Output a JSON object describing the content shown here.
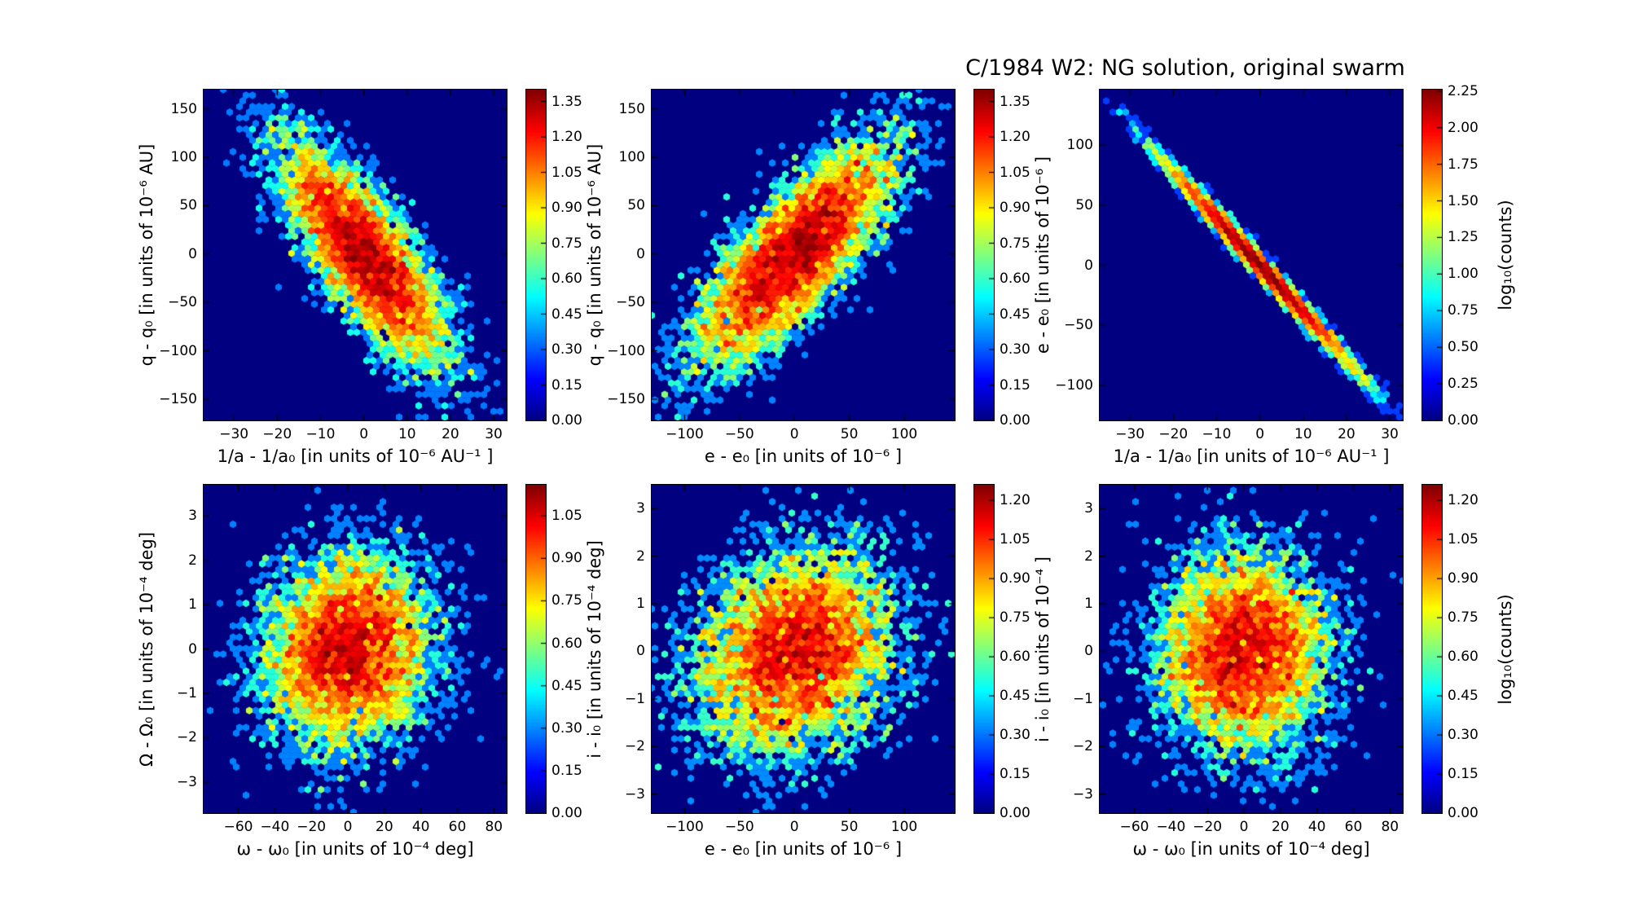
{
  "title": "C/1984 W2:  NG solution, original swarm",
  "colormap": "jet",
  "plot_background_color": "#000080",
  "hex_top_color": "#800000",
  "chart_data": [
    {
      "id": "q-vs-inverse-a",
      "type": "hexbin",
      "xlabel": "1/a - 1/a₀  [in units of 10⁻⁶  AU⁻¹ ]",
      "ylabel": "q - q₀  [in units of 10⁻⁶  AU]",
      "xlim": [
        -37,
        33
      ],
      "ylim": [
        -172,
        170
      ],
      "xticks": {
        "values": [
          -30,
          -20,
          -10,
          0,
          10,
          20,
          30
        ],
        "labels": [
          "−30",
          "−20",
          "−10",
          "0",
          "10",
          "20",
          "30"
        ]
      },
      "yticks": {
        "values": [
          -150,
          -100,
          -50,
          0,
          50,
          100,
          150
        ],
        "labels": [
          "−150",
          "−100",
          "−50",
          "0",
          "50",
          "100",
          "150"
        ]
      },
      "colorbar": {
        "tick_values": [
          0.0,
          0.15,
          0.3,
          0.45,
          0.6,
          0.75,
          0.9,
          1.05,
          1.2,
          1.35
        ],
        "tick_labels": [
          "0.00",
          "0.15",
          "0.30",
          "0.45",
          "0.60",
          "0.75",
          "0.90",
          "1.05",
          "1.20",
          "1.35"
        ],
        "scale_max": 1.4,
        "label": ""
      },
      "distribution": {
        "kind": "gaussian",
        "n": 6000,
        "center": [
          0,
          0
        ],
        "sigma_x": 9.5,
        "sigma_y": 57,
        "rho": -0.78,
        "seed": 101
      }
    },
    {
      "id": "q-vs-e",
      "type": "hexbin",
      "xlabel": "e - e₀  [in units of 10⁻⁶ ]",
      "ylabel": "q - q₀  [in units of 10⁻⁶  AU]",
      "xlim": [
        -130,
        146
      ],
      "ylim": [
        -172,
        170
      ],
      "xticks": {
        "values": [
          -100,
          -50,
          0,
          50,
          100
        ],
        "labels": [
          "−100",
          "−50",
          "0",
          "50",
          "100"
        ]
      },
      "yticks": {
        "values": [
          -150,
          -100,
          -50,
          0,
          50,
          100,
          150
        ],
        "labels": [
          "−150",
          "−100",
          "−50",
          "0",
          "50",
          "100",
          "150"
        ]
      },
      "colorbar": {
        "tick_values": [
          0.0,
          0.15,
          0.3,
          0.45,
          0.6,
          0.75,
          0.9,
          1.05,
          1.2,
          1.35
        ],
        "tick_labels": [
          "0.00",
          "0.15",
          "0.30",
          "0.45",
          "0.60",
          "0.75",
          "0.90",
          "1.05",
          "1.20",
          "1.35"
        ],
        "scale_max": 1.4,
        "label": ""
      },
      "distribution": {
        "kind": "gaussian",
        "n": 6000,
        "center": [
          0,
          0
        ],
        "sigma_x": 45,
        "sigma_y": 57,
        "rho": 0.78,
        "seed": 202
      }
    },
    {
      "id": "e-vs-inverse-a",
      "type": "hexbin",
      "xlabel": "1/a - 1/a₀  [in units of 10⁻⁶  AU⁻¹ ]",
      "ylabel": "e - e₀  [in units of 10⁻⁶ ]",
      "xlim": [
        -37,
        33
      ],
      "ylim": [
        -129,
        146
      ],
      "xticks": {
        "values": [
          -30,
          -20,
          -10,
          0,
          10,
          20,
          30
        ],
        "labels": [
          "−30",
          "−20",
          "−10",
          "0",
          "10",
          "20",
          "30"
        ]
      },
      "yticks": {
        "values": [
          -100,
          -50,
          0,
          50,
          100
        ],
        "labels": [
          "−100",
          "−50",
          "0",
          "50",
          "100"
        ]
      },
      "colorbar": {
        "tick_values": [
          0.0,
          0.25,
          0.5,
          0.75,
          1.0,
          1.25,
          1.5,
          1.75,
          2.0,
          2.25
        ],
        "tick_labels": [
          "0.00",
          "0.25",
          "0.50",
          "0.75",
          "1.00",
          "1.25",
          "1.50",
          "1.75",
          "2.00",
          "2.25"
        ],
        "scale_max": 2.26,
        "label": "log₁₀(counts)"
      },
      "distribution": {
        "kind": "line",
        "n": 6000,
        "center": [
          0,
          0
        ],
        "sigma_x": 10.5,
        "slope": -3.9,
        "perp_noise": 1.2,
        "seed": 303
      }
    },
    {
      "id": "node-vs-argperi",
      "type": "hexbin",
      "xlabel": "ω - ω₀  [in units of 10⁻⁴  deg]",
      "ylabel": "Ω - Ω₀  [in units of 10⁻⁴  deg]",
      "xlim": [
        -79,
        87
      ],
      "ylim": [
        -3.7,
        3.7
      ],
      "xticks": {
        "values": [
          -60,
          -40,
          -20,
          0,
          20,
          40,
          60,
          80
        ],
        "labels": [
          "−60",
          "−40",
          "−20",
          "0",
          "20",
          "40",
          "60",
          "80"
        ]
      },
      "yticks": {
        "values": [
          -3,
          -2,
          -1,
          0,
          1,
          2,
          3
        ],
        "labels": [
          "−3",
          "−2",
          "−1",
          "0",
          "1",
          "2",
          "3"
        ]
      },
      "colorbar": {
        "tick_values": [
          0.0,
          0.15,
          0.3,
          0.45,
          0.6,
          0.75,
          0.9,
          1.05
        ],
        "tick_labels": [
          "0.00",
          "0.15",
          "0.30",
          "0.45",
          "0.60",
          "0.75",
          "0.90",
          "1.05"
        ],
        "scale_max": 1.16,
        "label": ""
      },
      "distribution": {
        "kind": "gaussian",
        "n": 6000,
        "center": [
          0,
          0
        ],
        "sigma_x": 23,
        "sigma_y": 1.08,
        "rho": 0.08,
        "seed": 404
      }
    },
    {
      "id": "i-vs-e",
      "type": "hexbin",
      "xlabel": "e - e₀  [in units of 10⁻⁶ ]",
      "ylabel": "i - i₀  [in units of 10⁻⁴  deg]",
      "xlim": [
        -130,
        146
      ],
      "ylim": [
        -3.4,
        3.5
      ],
      "xticks": {
        "values": [
          -100,
          -50,
          0,
          50,
          100
        ],
        "labels": [
          "−100",
          "−50",
          "0",
          "50",
          "100"
        ]
      },
      "yticks": {
        "values": [
          -3,
          -2,
          -1,
          0,
          1,
          2,
          3
        ],
        "labels": [
          "−3",
          "−2",
          "−1",
          "0",
          "1",
          "2",
          "3"
        ]
      },
      "colorbar": {
        "tick_values": [
          0.0,
          0.15,
          0.3,
          0.45,
          0.6,
          0.75,
          0.9,
          1.05,
          1.2
        ],
        "tick_labels": [
          "0.00",
          "0.15",
          "0.30",
          "0.45",
          "0.60",
          "0.75",
          "0.90",
          "1.05",
          "1.20"
        ],
        "scale_max": 1.26,
        "label": ""
      },
      "distribution": {
        "kind": "gaussian",
        "n": 6000,
        "center": [
          0,
          0
        ],
        "sigma_x": 45,
        "sigma_y": 1.05,
        "rho": 0.18,
        "seed": 505
      }
    },
    {
      "id": "i-vs-argperi",
      "type": "hexbin",
      "xlabel": "ω - ω₀  [in units of 10⁻⁴  deg]",
      "ylabel": "i - i₀  [in units of 10⁻⁴ ]",
      "xlim": [
        -79,
        87
      ],
      "ylim": [
        -3.4,
        3.5
      ],
      "xticks": {
        "values": [
          -60,
          -40,
          -20,
          0,
          20,
          40,
          60,
          80
        ],
        "labels": [
          "−60",
          "−40",
          "−20",
          "0",
          "20",
          "40",
          "60",
          "80"
        ]
      },
      "yticks": {
        "values": [
          -3,
          -2,
          -1,
          0,
          1,
          2,
          3
        ],
        "labels": [
          "−3",
          "−2",
          "−1",
          "0",
          "1",
          "2",
          "3"
        ]
      },
      "colorbar": {
        "tick_values": [
          0.0,
          0.15,
          0.3,
          0.45,
          0.6,
          0.75,
          0.9,
          1.05,
          1.2
        ],
        "tick_labels": [
          "0.00",
          "0.15",
          "0.30",
          "0.45",
          "0.60",
          "0.75",
          "0.90",
          "1.05",
          "1.20"
        ],
        "scale_max": 1.26,
        "label": "log₁₀(counts)"
      },
      "distribution": {
        "kind": "gaussian",
        "n": 6000,
        "center": [
          0,
          0
        ],
        "sigma_x": 23,
        "sigma_y": 1.05,
        "rho": 0.02,
        "seed": 606
      }
    }
  ]
}
